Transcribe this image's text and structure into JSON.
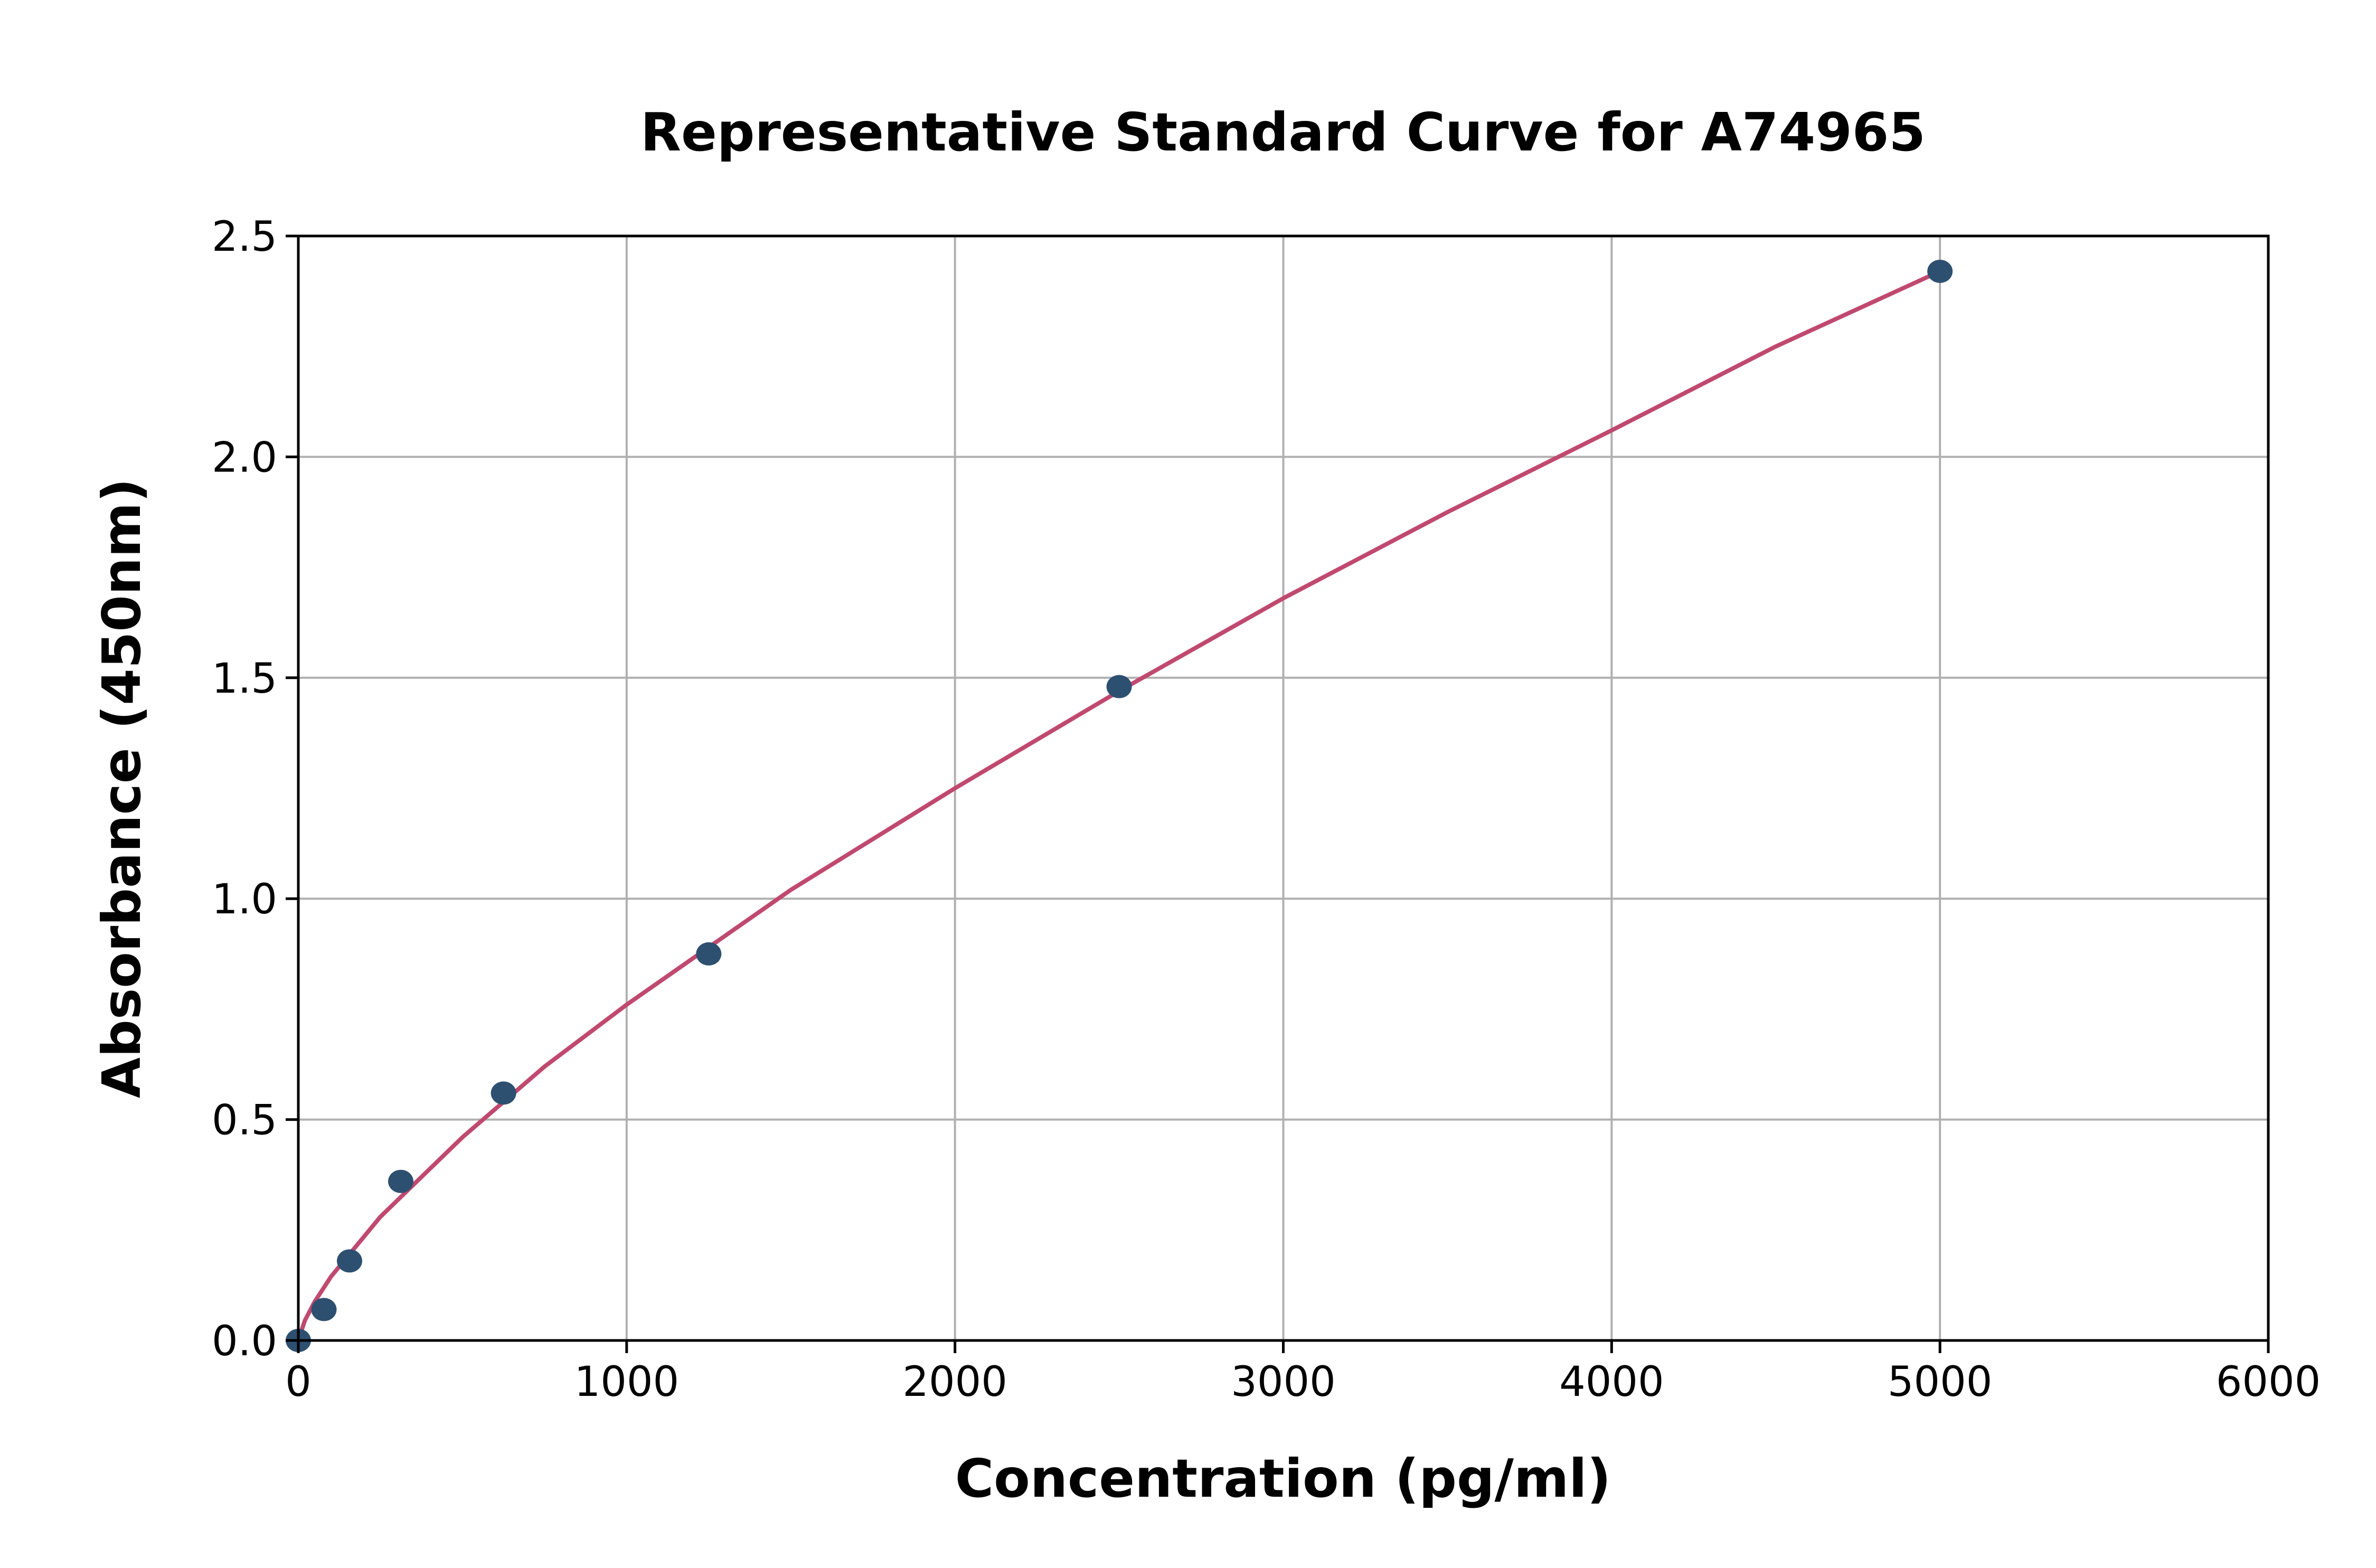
{
  "chart_data": {
    "type": "scatter",
    "title": "Representative Standard Curve for A74965",
    "xlabel": "Concentration (pg/ml)",
    "ylabel": "Absorbance (450nm)",
    "xlim": [
      0,
      6000
    ],
    "ylim": [
      0,
      2.5
    ],
    "xticks": [
      "0",
      "1000",
      "2000",
      "3000",
      "4000",
      "5000",
      "6000"
    ],
    "yticks": [
      "0.0",
      "0.5",
      "1.0",
      "1.5",
      "2.0",
      "2.5"
    ],
    "grid": true,
    "points": {
      "x": [
        0,
        78,
        156,
        312,
        625,
        1250,
        2500,
        5000
      ],
      "y": [
        0.0,
        0.07,
        0.18,
        0.36,
        0.56,
        0.875,
        1.48,
        2.42
      ]
    },
    "fit_curve": {
      "x": [
        0,
        20,
        50,
        100,
        250,
        500,
        750,
        1000,
        1500,
        2000,
        2500,
        3000,
        3500,
        4000,
        4500,
        5000
      ],
      "y": [
        0,
        0.045,
        0.088,
        0.145,
        0.28,
        0.46,
        0.62,
        0.76,
        1.02,
        1.25,
        1.47,
        1.68,
        1.875,
        2.06,
        2.25,
        2.42
      ]
    },
    "colors": {
      "points": "#2e5070",
      "curve": "#c0496f",
      "grid": "#b0b0b0"
    }
  }
}
